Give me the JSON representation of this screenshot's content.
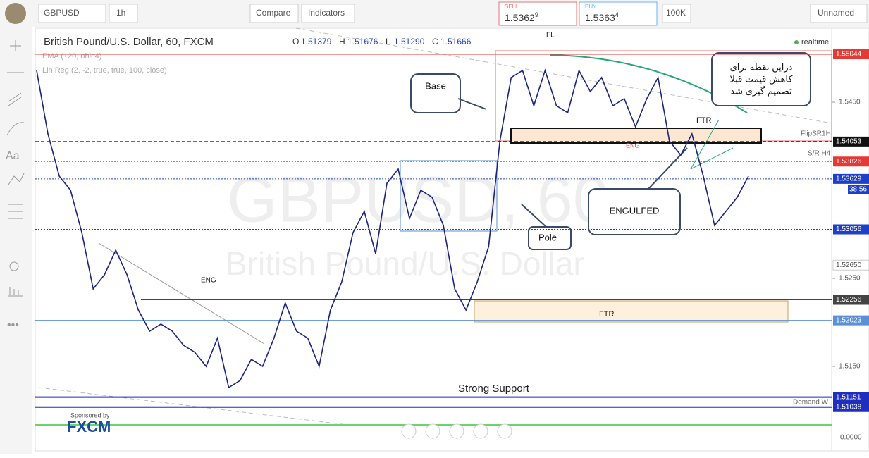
{
  "toolbar": {
    "symbol": "GBPUSD",
    "interval": "1h",
    "compare": "Compare",
    "indicators": "Indicators",
    "sell_label": "SELL",
    "sell": "1.5362",
    "sell_sup": "9",
    "buy_label": "BUY",
    "buy": "1.5363",
    "buy_sup": "4",
    "quantity": "100K",
    "layout": "Unnamed"
  },
  "legend": {
    "title": "British Pound/U.S. Dollar, 60, FXCM",
    "ohlc": [
      {
        "key": "O",
        "val": "1.51379"
      },
      {
        "key": "H",
        "val": "1.51676"
      },
      {
        "key": "L",
        "val": "1.51290"
      },
      {
        "key": "C",
        "val": "1.51666"
      }
    ],
    "ema": "EMA (120, ohlc4)",
    "linreg": "Lin Reg (2, -2, true, true, 100, close)",
    "realtime": "realtime"
  },
  "watermark": {
    "symbol": "GBPUSD, 60",
    "name": "British Pound/U.S. Dollar"
  },
  "annotations": {
    "base": "Base",
    "pole": "Pole",
    "engulfed": "ENGULFED",
    "note": [
      "دراین نقطه برای",
      "کاهش قیمت قبلا",
      "تصمیم گیری شد"
    ],
    "fl": "FL",
    "ftr_top": "FTR",
    "ftr_bottom": "FTR",
    "eng_top": "ENG",
    "eng_left": "ENG",
    "flip": "FlipSR1H",
    "sr": "S/R H4",
    "demand": "Demand W",
    "support": "Strong Support",
    "sponsor": "Sponsored by",
    "brand": "FXCM",
    "countdown": "38.56",
    "volume_axis": "0.0000"
  },
  "chart_data": {
    "type": "line",
    "ylim": [
      1.5054,
      1.5534
    ],
    "yticks": [
      {
        "value": 1.545,
        "label": "1.5450"
      },
      {
        "value": 1.525,
        "label": "1.5250"
      },
      {
        "value": 1.515,
        "label": "1.5150"
      }
    ],
    "price_lines": [
      {
        "value": 1.55044,
        "color": "#e53935",
        "style": "solid"
      },
      {
        "value": 1.54053,
        "color": "#111111",
        "style": "dashed"
      },
      {
        "value": 1.53826,
        "color": "#e53935",
        "style": "dotted"
      },
      {
        "value": 1.53629,
        "color": "#1e40c8",
        "style": "dotted"
      },
      {
        "value": 1.53056,
        "color": "#1e40c8",
        "style": "dotted"
      },
      {
        "value": 1.5265,
        "label": "1.52650",
        "color": "#ffffff",
        "style": "none"
      },
      {
        "value": 1.52256,
        "color": "#444444",
        "style": "solid"
      },
      {
        "value": 1.52023,
        "color": "#5b8fd6",
        "style": "solid"
      },
      {
        "value": 1.51151,
        "color": "#1e2fc0",
        "style": "solid"
      },
      {
        "value": 1.51038,
        "color": "#1e2fc0",
        "style": "solid"
      }
    ],
    "color": "#1a237e",
    "values": [
      1.5486,
      1.5414,
      1.5366,
      1.535,
      1.5302,
      1.5238,
      1.5254,
      1.5282,
      1.5254,
      1.5214,
      1.519,
      1.5198,
      1.519,
      1.5174,
      1.5166,
      1.515,
      1.5182,
      1.5126,
      1.5134,
      1.5158,
      1.515,
      1.5182,
      1.5222,
      1.519,
      1.5182,
      1.515,
      1.5214,
      1.5246,
      1.5302,
      1.5326,
      1.5278,
      1.5358,
      1.5374,
      1.5318,
      1.535,
      1.5342,
      1.531,
      1.5238,
      1.5214,
      1.5246,
      1.5286,
      1.5406,
      1.5478,
      1.5486,
      1.5446,
      1.5486,
      1.5446,
      1.5438,
      1.5486,
      1.5462,
      1.5478,
      1.5446,
      1.5454,
      1.5422,
      1.5454,
      1.5478,
      1.5406,
      1.539,
      1.5414,
      1.5366,
      1.531,
      1.5326,
      1.5342,
      1.5366
    ]
  }
}
